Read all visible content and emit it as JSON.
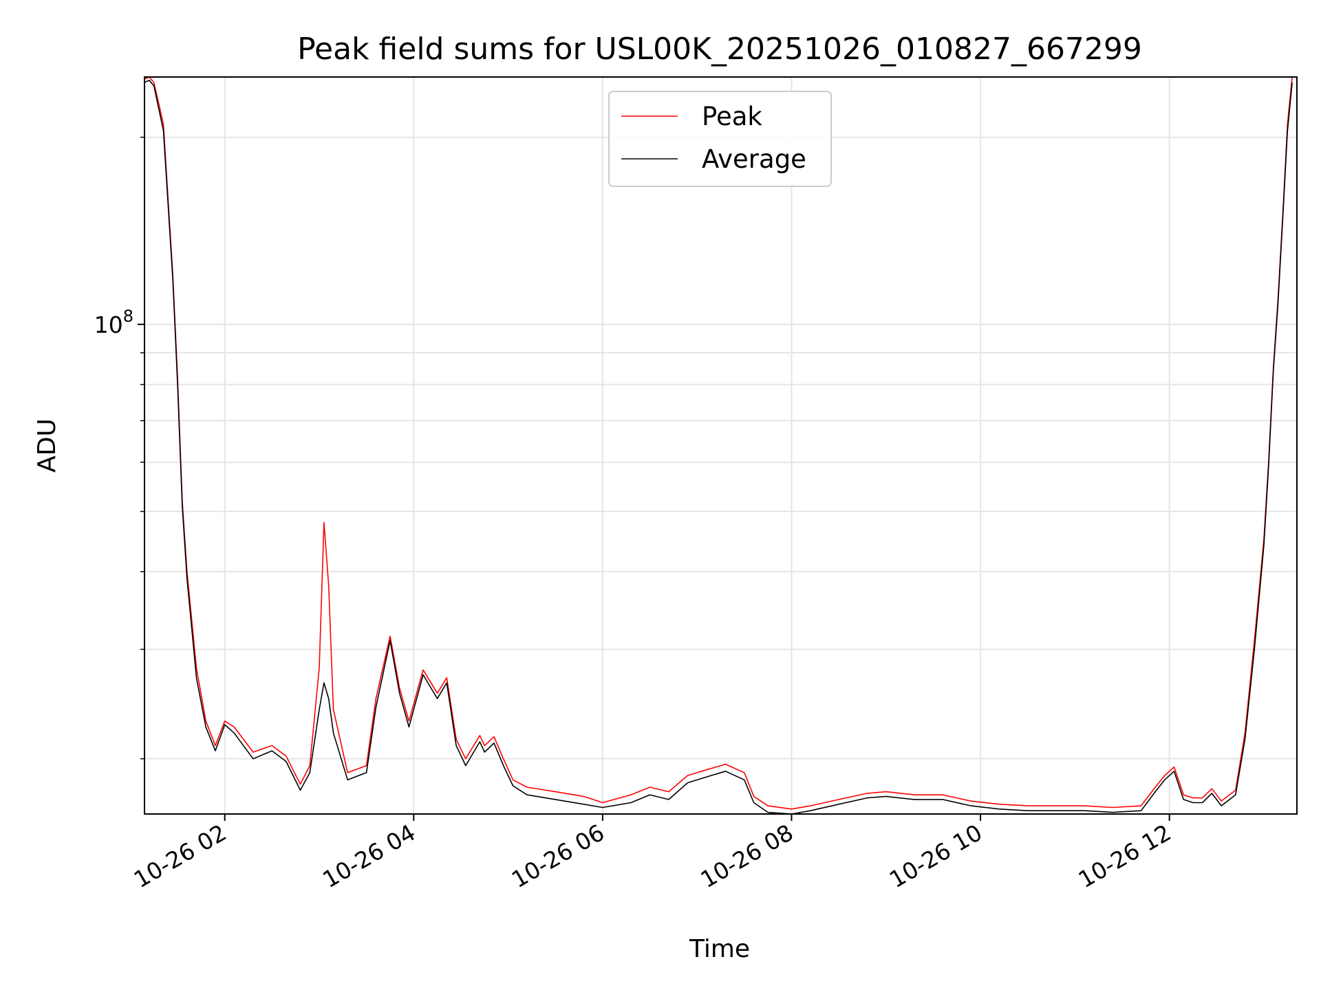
{
  "chart_data": {
    "type": "line",
    "title": "Peak field sums for USL00K_20251026_010827_667299",
    "xlabel": "Time",
    "ylabel": "ADU",
    "yscale": "log",
    "ylim": [
      16300000,
      250000000
    ],
    "xlim_hours": [
      1.15,
      13.35
    ],
    "grid": true,
    "legend_position": "upper center",
    "x_ticks": [
      {
        "hour": 2,
        "label": "10-26 02"
      },
      {
        "hour": 4,
        "label": "10-26 04"
      },
      {
        "hour": 6,
        "label": "10-26 06"
      },
      {
        "hour": 8,
        "label": "10-26 08"
      },
      {
        "hour": 10,
        "label": "10-26 10"
      },
      {
        "hour": 12,
        "label": "10-26 12"
      }
    ],
    "y_major_ticks": [
      {
        "value": 100000000,
        "base": "10",
        "exp": "8"
      }
    ],
    "y_minor_ticks": [
      20000000,
      30000000,
      40000000,
      50000000,
      60000000,
      70000000,
      80000000,
      90000000,
      200000000
    ],
    "series": [
      {
        "name": "Peak",
        "color": "#ff0000",
        "x_hours": [
          1.15,
          1.2,
          1.25,
          1.35,
          1.45,
          1.5,
          1.55,
          1.6,
          1.7,
          1.8,
          1.9,
          2.0,
          2.1,
          2.3,
          2.5,
          2.65,
          2.8,
          2.9,
          3.0,
          3.05,
          3.1,
          3.15,
          3.3,
          3.5,
          3.6,
          3.75,
          3.85,
          3.95,
          4.1,
          4.25,
          4.35,
          4.45,
          4.55,
          4.7,
          4.75,
          4.85,
          4.95,
          5.05,
          5.2,
          5.5,
          5.8,
          6.0,
          6.3,
          6.5,
          6.7,
          6.9,
          7.1,
          7.3,
          7.5,
          7.6,
          7.75,
          8.0,
          8.2,
          8.5,
          8.8,
          9.0,
          9.3,
          9.6,
          9.9,
          10.2,
          10.5,
          10.8,
          11.1,
          11.4,
          11.7,
          11.85,
          11.95,
          12.05,
          12.15,
          12.25,
          12.35,
          12.45,
          12.55,
          12.7,
          12.8,
          12.9,
          13.0,
          13.05,
          13.1,
          13.15,
          13.2,
          13.25,
          13.3
        ],
        "values": [
          248000000,
          250000000,
          245000000,
          210000000,
          120000000,
          82000000,
          52000000,
          40000000,
          28000000,
          23000000,
          21000000,
          23000000,
          22500000,
          20500000,
          21000000,
          20200000,
          18200000,
          19500000,
          28000000,
          48000000,
          38000000,
          24000000,
          19000000,
          19500000,
          25000000,
          31500000,
          26000000,
          23000000,
          27800000,
          25500000,
          27000000,
          21500000,
          20000000,
          21800000,
          21000000,
          21700000,
          20000000,
          18500000,
          18000000,
          17700000,
          17400000,
          17000000,
          17500000,
          18000000,
          17700000,
          18800000,
          19200000,
          19600000,
          19000000,
          17400000,
          16800000,
          16600000,
          16800000,
          17200000,
          17600000,
          17700000,
          17500000,
          17500000,
          17100000,
          16900000,
          16800000,
          16800000,
          16800000,
          16700000,
          16800000,
          18000000,
          18800000,
          19400000,
          17500000,
          17300000,
          17300000,
          17900000,
          17100000,
          17800000,
          22000000,
          31000000,
          45000000,
          60000000,
          85000000,
          110000000,
          150000000,
          210000000,
          250000000
        ]
      },
      {
        "name": "Average",
        "color": "#000000",
        "x_hours": [
          1.15,
          1.2,
          1.25,
          1.35,
          1.45,
          1.5,
          1.55,
          1.6,
          1.7,
          1.8,
          1.9,
          2.0,
          2.1,
          2.3,
          2.5,
          2.65,
          2.8,
          2.9,
          3.0,
          3.05,
          3.1,
          3.15,
          3.3,
          3.5,
          3.6,
          3.75,
          3.85,
          3.95,
          4.1,
          4.25,
          4.35,
          4.45,
          4.55,
          4.7,
          4.75,
          4.85,
          4.95,
          5.05,
          5.2,
          5.5,
          5.8,
          6.0,
          6.3,
          6.5,
          6.7,
          6.9,
          7.1,
          7.3,
          7.5,
          7.6,
          7.75,
          8.0,
          8.2,
          8.5,
          8.8,
          9.0,
          9.3,
          9.6,
          9.9,
          10.2,
          10.5,
          10.8,
          11.1,
          11.4,
          11.7,
          11.85,
          11.95,
          12.05,
          12.15,
          12.25,
          12.35,
          12.45,
          12.55,
          12.7,
          12.8,
          12.9,
          13.0,
          13.05,
          13.1,
          13.15,
          13.2,
          13.25,
          13.3
        ],
        "values": [
          245000000,
          247000000,
          242000000,
          205000000,
          118000000,
          80000000,
          51000000,
          39000000,
          27000000,
          22500000,
          20600000,
          22700000,
          22000000,
          20000000,
          20600000,
          19800000,
          17800000,
          19000000,
          24000000,
          26500000,
          25000000,
          22000000,
          18500000,
          19000000,
          24200000,
          31000000,
          25500000,
          22500000,
          27300000,
          25000000,
          26500000,
          21000000,
          19500000,
          21300000,
          20500000,
          21200000,
          19500000,
          18100000,
          17500000,
          17200000,
          16900000,
          16700000,
          17000000,
          17500000,
          17200000,
          18300000,
          18700000,
          19100000,
          18500000,
          17000000,
          16400000,
          16300000,
          16500000,
          16900000,
          17300000,
          17400000,
          17200000,
          17200000,
          16800000,
          16600000,
          16500000,
          16500000,
          16500000,
          16400000,
          16500000,
          17700000,
          18500000,
          19100000,
          17200000,
          17000000,
          17000000,
          17600000,
          16800000,
          17500000,
          21500000,
          30000000,
          44000000,
          59000000,
          84000000,
          108000000,
          148000000,
          205000000,
          245000000
        ]
      }
    ]
  }
}
